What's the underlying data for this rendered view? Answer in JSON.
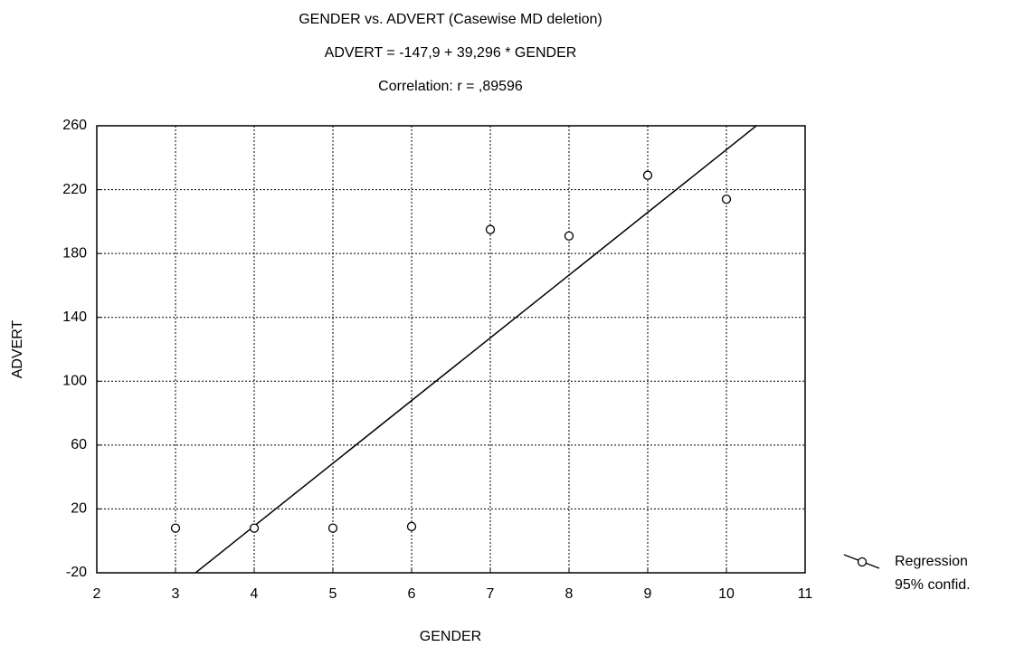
{
  "chart_data": {
    "type": "scatter",
    "title": "GENDER vs. ADVERT (Casewise MD deletion)",
    "equation": "ADVERT = -147,9 + 39,296 * GENDER",
    "correlation": "Correlation: r = ,89596",
    "x_label": "GENDER",
    "y_label": "ADVERT",
    "x": [
      3,
      4,
      5,
      6,
      7,
      8,
      9,
      10
    ],
    "values": [
      8,
      8,
      8,
      9,
      195,
      191,
      229,
      214
    ],
    "regression": {
      "intercept": -147.9,
      "slope": 39.296
    },
    "legend_labels": [
      "Regression",
      "95% confid."
    ],
    "legend": "bottom-right",
    "xlim": [
      2,
      11
    ],
    "xticks": [
      2,
      3,
      4,
      5,
      6,
      7,
      8,
      9,
      10,
      11
    ],
    "ylim": [
      -20,
      260
    ],
    "yticks": [
      -20,
      20,
      60,
      100,
      140,
      180,
      220,
      260
    ],
    "grid": true,
    "color": "#000000"
  }
}
